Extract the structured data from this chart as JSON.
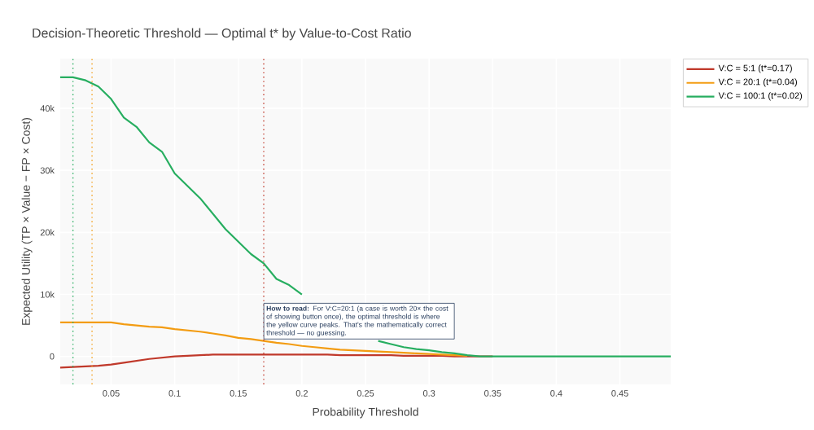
{
  "chart_data": {
    "type": "line",
    "title": "Decision-Theoretic Threshold — Optimal t* by Value-to-Cost Ratio",
    "xlabel": "Probability Threshold",
    "ylabel": "Expected Utility (TP × Value − FP × Cost)",
    "x": [
      0.01,
      0.02,
      0.03,
      0.04,
      0.05,
      0.06,
      0.07,
      0.08,
      0.09,
      0.1,
      0.11,
      0.12,
      0.13,
      0.14,
      0.15,
      0.16,
      0.17,
      0.18,
      0.19,
      0.2,
      0.21,
      0.22,
      0.23,
      0.24,
      0.25,
      0.26,
      0.27,
      0.28,
      0.29,
      0.3,
      0.31,
      0.32,
      0.33,
      0.34,
      0.35,
      0.36,
      0.37,
      0.38,
      0.39,
      0.4,
      0.41,
      0.42,
      0.43,
      0.44,
      0.45,
      0.46,
      0.47,
      0.48,
      0.49
    ],
    "series": [
      {
        "name": "V:C = 5:1  (t*=0.17)",
        "color": "#c0392b",
        "values": [
          -1800,
          -1700,
          -1600,
          -1500,
          -1300,
          -1000,
          -700,
          -400,
          -200,
          0,
          100,
          200,
          300,
          300,
          300,
          300,
          300,
          300,
          300,
          300,
          300,
          300,
          200,
          200,
          200,
          200,
          200,
          100,
          100,
          100,
          100,
          0,
          0,
          0,
          0,
          null,
          null,
          null,
          null,
          null,
          null,
          null,
          null,
          null,
          null,
          null,
          null,
          null,
          null
        ]
      },
      {
        "name": "V:C = 20:1  (t*=0.04)",
        "color": "#f39c12",
        "values": [
          5500,
          5500,
          5500,
          5500,
          5500,
          5200,
          5000,
          4800,
          4700,
          4400,
          4200,
          4000,
          3700,
          3400,
          3000,
          2800,
          2500,
          2200,
          2000,
          1700,
          1500,
          1300,
          1100,
          1000,
          900,
          800,
          700,
          600,
          500,
          400,
          300,
          200,
          100,
          null,
          null,
          null,
          null,
          null,
          null,
          null,
          null,
          null,
          null,
          null,
          null,
          null,
          null,
          null,
          null
        ]
      },
      {
        "name": "V:C = 100:1  (t*=0.02)",
        "color": "#27ae60",
        "values": [
          45000,
          45000,
          44500,
          43500,
          41500,
          38500,
          37000,
          34500,
          33000,
          29500,
          27500,
          25500,
          23000,
          20500,
          18500,
          16500,
          15000,
          12500,
          11500,
          10000,
          null,
          null,
          null,
          null,
          null,
          2500,
          2000,
          1500,
          1200,
          1000,
          700,
          500,
          200,
          0,
          0,
          0,
          0,
          0,
          0,
          0,
          0,
          0,
          0,
          0,
          0,
          0,
          0,
          0,
          0
        ]
      }
    ],
    "xlim": [
      0.01,
      0.49
    ],
    "ylim": [
      -4500,
      48000
    ],
    "xticks": [
      0.05,
      0.1,
      0.15,
      0.2,
      0.25,
      0.3,
      0.35,
      0.4,
      0.45
    ],
    "yticks": [
      0,
      {
        "value": 10000,
        "label": "10k"
      },
      {
        "value": 20000,
        "label": "20k"
      },
      {
        "value": 30000,
        "label": "30k"
      },
      {
        "value": 40000,
        "label": "40k"
      }
    ],
    "ref_lines": [
      {
        "axis": "x",
        "value": 0.17,
        "color": "#c0392b",
        "line_style": "dotted"
      },
      {
        "axis": "x",
        "value": 0.035,
        "color": "#f39c12",
        "line_style": "dotted"
      },
      {
        "axis": "x",
        "value": 0.02,
        "color": "#27ae60",
        "line_style": "dotted"
      }
    ],
    "annotations": [
      "**How to read:** For V:C=20:1 (a case is worth 20× the cost of showing button once), the optimal threshold is where the yellow curve peaks. That's the mathematically correct threshold — no guessing."
    ],
    "grid": true,
    "legend": "top right",
    "line_style": "solid"
  }
}
